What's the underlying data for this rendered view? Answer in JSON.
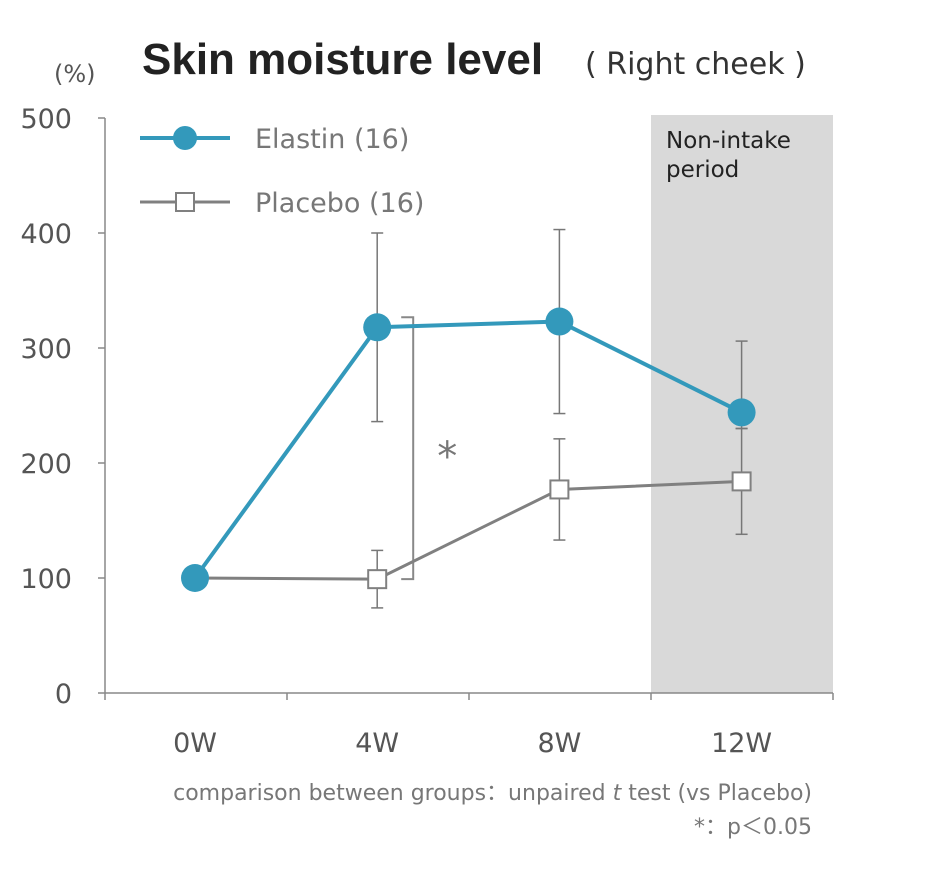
{
  "chart_data": {
    "type": "line",
    "title": "Skin moisture level",
    "subtitle": "( Right cheek )",
    "ylabel": "(%)",
    "xlabel": "",
    "categories": [
      "0W",
      "4W",
      "8W",
      "12W"
    ],
    "ylim": [
      0,
      500
    ],
    "yticks": [
      0,
      100,
      200,
      300,
      400,
      500
    ],
    "grid": false,
    "legend_position": "top-left",
    "series": [
      {
        "name": "Elastin (16)",
        "color": "#3399bb",
        "marker": "filled-circle",
        "values": [
          100,
          318,
          323,
          244
        ],
        "error_low": [
          null,
          236,
          243,
          230
        ],
        "error_high": [
          null,
          400,
          403,
          306
        ]
      },
      {
        "name": "Placebo (16)",
        "color": "#808080",
        "marker": "open-square",
        "values": [
          100,
          99,
          177,
          184
        ],
        "error_low": [
          null,
          74,
          133,
          138
        ],
        "error_high": [
          null,
          124,
          221,
          230
        ]
      }
    ],
    "shaded_region": {
      "label_line1": "Non-intake",
      "label_line2": "period",
      "from_category": "12W",
      "color": "#d9d9d9"
    },
    "significance": {
      "between_category": "4W",
      "label": "*"
    },
    "annotations": [
      "comparison between groups：unpaired ",
      "t",
      " test (vs Placebo)",
      "*：p＜0.05"
    ]
  }
}
